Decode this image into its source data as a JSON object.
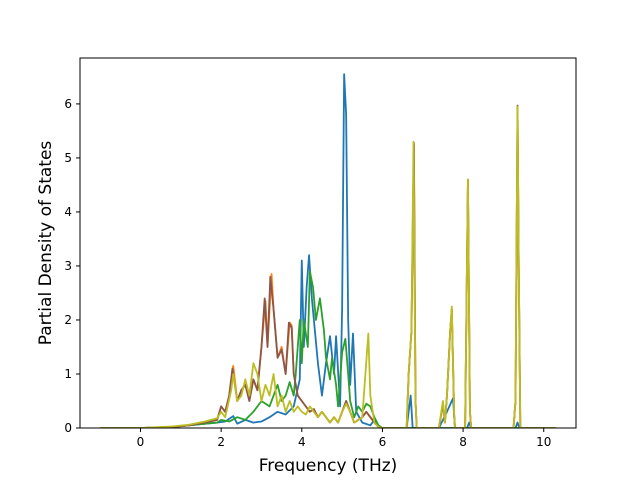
{
  "chart_data": {
    "type": "line",
    "title": "",
    "xlabel": "Frequency (THz)",
    "ylabel": "Partial Density of States",
    "xlim": [
      -1.5,
      10.8
    ],
    "ylim": [
      0,
      6.85
    ],
    "xticks": [
      0,
      2,
      4,
      6,
      8,
      10
    ],
    "yticks": [
      0,
      1,
      2,
      3,
      4,
      5,
      6
    ],
    "grid": false,
    "legend": "none",
    "series": [
      {
        "color": "#1f77b4",
        "points": [
          [
            -1,
            0
          ],
          [
            0,
            0
          ],
          [
            0.8,
            0.02
          ],
          [
            1.2,
            0.05
          ],
          [
            1.6,
            0.08
          ],
          [
            1.9,
            0.1
          ],
          [
            2.1,
            0.12
          ],
          [
            2.3,
            0.22
          ],
          [
            2.4,
            0.08
          ],
          [
            2.6,
            0.15
          ],
          [
            2.8,
            0.1
          ],
          [
            3.0,
            0.12
          ],
          [
            3.2,
            0.2
          ],
          [
            3.4,
            0.3
          ],
          [
            3.6,
            0.25
          ],
          [
            3.8,
            0.4
          ],
          [
            3.95,
            0.9
          ],
          [
            4.0,
            3.1
          ],
          [
            4.05,
            1.5
          ],
          [
            4.12,
            2.6
          ],
          [
            4.18,
            3.2
          ],
          [
            4.25,
            2.4
          ],
          [
            4.4,
            1.2
          ],
          [
            4.5,
            0.6
          ],
          [
            4.6,
            1.2
          ],
          [
            4.7,
            1.7
          ],
          [
            4.8,
            1.0
          ],
          [
            4.85,
            1.7
          ],
          [
            4.95,
            0.4
          ],
          [
            5.0,
            2.2
          ],
          [
            5.05,
            6.55
          ],
          [
            5.1,
            5.8
          ],
          [
            5.15,
            2.0
          ],
          [
            5.2,
            0.8
          ],
          [
            5.27,
            1.75
          ],
          [
            5.35,
            0.3
          ],
          [
            5.5,
            0.1
          ],
          [
            5.7,
            0.05
          ],
          [
            5.8,
            0.15
          ],
          [
            5.9,
            0.02
          ],
          [
            6.0,
            0
          ],
          [
            6.6,
            0
          ],
          [
            6.7,
            0.6
          ],
          [
            6.75,
            0
          ],
          [
            7.4,
            0
          ],
          [
            7.6,
            0.3
          ],
          [
            7.75,
            0.55
          ],
          [
            7.8,
            0
          ],
          [
            8.1,
            0
          ],
          [
            8.15,
            0.1
          ],
          [
            8.2,
            0
          ],
          [
            9.3,
            0
          ],
          [
            9.35,
            0.1
          ],
          [
            9.4,
            0
          ],
          [
            10.3,
            0
          ]
        ]
      },
      {
        "color": "#ff7f0e",
        "points": [
          [
            -1,
            0
          ],
          [
            0,
            0
          ],
          [
            0.8,
            0.02
          ],
          [
            1.2,
            0.05
          ],
          [
            1.6,
            0.1
          ],
          [
            1.9,
            0.15
          ],
          [
            2.0,
            0.4
          ],
          [
            2.1,
            0.3
          ],
          [
            2.2,
            0.6
          ],
          [
            2.3,
            1.15
          ],
          [
            2.4,
            0.5
          ],
          [
            2.5,
            0.7
          ],
          [
            2.6,
            0.8
          ],
          [
            2.7,
            0.5
          ],
          [
            2.8,
            0.9
          ],
          [
            2.9,
            0.7
          ],
          [
            3.0,
            1.5
          ],
          [
            3.1,
            2.35
          ],
          [
            3.15,
            1.5
          ],
          [
            3.25,
            2.85
          ],
          [
            3.3,
            2.2
          ],
          [
            3.4,
            1.3
          ],
          [
            3.5,
            1.5
          ],
          [
            3.6,
            1.0
          ],
          [
            3.7,
            1.95
          ],
          [
            3.75,
            1.9
          ],
          [
            3.8,
            1.0
          ],
          [
            3.9,
            0.6
          ],
          [
            4.0,
            0.5
          ],
          [
            4.1,
            0.4
          ],
          [
            4.2,
            0.3
          ],
          [
            4.3,
            0.35
          ],
          [
            4.4,
            0.2
          ],
          [
            4.5,
            0.3
          ],
          [
            4.6,
            0.2
          ],
          [
            4.7,
            0.1
          ],
          [
            4.8,
            0.2
          ],
          [
            4.9,
            0.1
          ],
          [
            5.0,
            0.3
          ],
          [
            5.1,
            0.5
          ],
          [
            5.2,
            0.3
          ],
          [
            5.3,
            0.1
          ],
          [
            5.5,
            0.2
          ],
          [
            5.6,
            0.3
          ],
          [
            5.7,
            0.2
          ],
          [
            5.8,
            0.1
          ],
          [
            5.9,
            0.02
          ],
          [
            6.0,
            0
          ],
          [
            6.6,
            0
          ],
          [
            6.65,
            1.0
          ],
          [
            6.72,
            1.8
          ],
          [
            6.78,
            5.25
          ],
          [
            6.82,
            0.5
          ],
          [
            6.85,
            0
          ],
          [
            7.4,
            0
          ],
          [
            7.5,
            0.45
          ],
          [
            7.55,
            0.1
          ],
          [
            7.6,
            0.6
          ],
          [
            7.68,
            1.8
          ],
          [
            7.72,
            2.2
          ],
          [
            7.78,
            0.2
          ],
          [
            7.8,
            0
          ],
          [
            8.05,
            0
          ],
          [
            8.12,
            4.6
          ],
          [
            8.17,
            0.3
          ],
          [
            8.2,
            0
          ],
          [
            9.25,
            0
          ],
          [
            9.3,
            0.5
          ],
          [
            9.35,
            5.95
          ],
          [
            9.38,
            3.0
          ],
          [
            9.42,
            0
          ],
          [
            10.3,
            0
          ]
        ]
      },
      {
        "color": "#2ca02c",
        "points": [
          [
            -1,
            0
          ],
          [
            0,
            0
          ],
          [
            0.8,
            0.02
          ],
          [
            1.2,
            0.05
          ],
          [
            1.6,
            0.08
          ],
          [
            1.9,
            0.1
          ],
          [
            2.0,
            0.15
          ],
          [
            2.2,
            0.12
          ],
          [
            2.4,
            0.2
          ],
          [
            2.6,
            0.15
          ],
          [
            2.8,
            0.3
          ],
          [
            3.0,
            0.5
          ],
          [
            3.2,
            0.4
          ],
          [
            3.4,
            0.8
          ],
          [
            3.5,
            0.5
          ],
          [
            3.6,
            0.6
          ],
          [
            3.7,
            0.85
          ],
          [
            3.8,
            0.6
          ],
          [
            3.85,
            1.0
          ],
          [
            3.95,
            2.0
          ],
          [
            4.0,
            1.2
          ],
          [
            4.05,
            2.0
          ],
          [
            4.15,
            1.5
          ],
          [
            4.2,
            2.9
          ],
          [
            4.28,
            2.6
          ],
          [
            4.35,
            2.0
          ],
          [
            4.45,
            2.4
          ],
          [
            4.55,
            1.8
          ],
          [
            4.6,
            1.3
          ],
          [
            4.7,
            0.9
          ],
          [
            4.75,
            1.3
          ],
          [
            4.85,
            0.8
          ],
          [
            4.9,
            0.4
          ],
          [
            5.0,
            1.4
          ],
          [
            5.08,
            1.65
          ],
          [
            5.15,
            1.0
          ],
          [
            5.2,
            0.5
          ],
          [
            5.3,
            0.2
          ],
          [
            5.4,
            0.4
          ],
          [
            5.5,
            0.3
          ],
          [
            5.6,
            0.45
          ],
          [
            5.7,
            0.4
          ],
          [
            5.8,
            0.2
          ],
          [
            5.9,
            0.05
          ],
          [
            6.0,
            0
          ],
          [
            10.3,
            0
          ]
        ]
      },
      {
        "color": "#8c564b",
        "points": [
          [
            -1,
            0
          ],
          [
            0,
            0
          ],
          [
            0.8,
            0.02
          ],
          [
            1.2,
            0.05
          ],
          [
            1.6,
            0.1
          ],
          [
            1.9,
            0.15
          ],
          [
            2.0,
            0.4
          ],
          [
            2.1,
            0.3
          ],
          [
            2.2,
            0.6
          ],
          [
            2.28,
            1.1
          ],
          [
            2.4,
            0.5
          ],
          [
            2.5,
            0.7
          ],
          [
            2.6,
            0.8
          ],
          [
            2.7,
            0.5
          ],
          [
            2.8,
            0.9
          ],
          [
            2.9,
            0.7
          ],
          [
            3.0,
            1.5
          ],
          [
            3.08,
            2.4
          ],
          [
            3.15,
            1.5
          ],
          [
            3.22,
            2.8
          ],
          [
            3.3,
            2.2
          ],
          [
            3.4,
            1.3
          ],
          [
            3.5,
            1.45
          ],
          [
            3.6,
            1.0
          ],
          [
            3.68,
            1.95
          ],
          [
            3.75,
            1.85
          ],
          [
            3.8,
            1.0
          ],
          [
            3.9,
            0.6
          ],
          [
            4.0,
            0.5
          ],
          [
            4.1,
            0.4
          ],
          [
            4.2,
            0.3
          ],
          [
            4.3,
            0.35
          ],
          [
            4.4,
            0.2
          ],
          [
            4.5,
            0.3
          ],
          [
            4.6,
            0.2
          ],
          [
            4.7,
            0.1
          ],
          [
            4.8,
            0.2
          ],
          [
            4.9,
            0.1
          ],
          [
            5.0,
            0.3
          ],
          [
            5.1,
            0.5
          ],
          [
            5.2,
            0.3
          ],
          [
            5.3,
            0.1
          ],
          [
            5.5,
            0.2
          ],
          [
            5.6,
            0.3
          ],
          [
            5.7,
            0.2
          ],
          [
            5.8,
            0.1
          ],
          [
            5.9,
            0.02
          ],
          [
            6.0,
            0
          ],
          [
            6.6,
            0
          ],
          [
            6.65,
            1.0
          ],
          [
            6.72,
            1.8
          ],
          [
            6.78,
            5.28
          ],
          [
            6.82,
            0.5
          ],
          [
            6.85,
            0
          ],
          [
            7.4,
            0
          ],
          [
            7.5,
            0.45
          ],
          [
            7.55,
            0.1
          ],
          [
            7.6,
            0.6
          ],
          [
            7.68,
            1.8
          ],
          [
            7.72,
            2.2
          ],
          [
            7.78,
            0.2
          ],
          [
            7.8,
            0
          ],
          [
            8.05,
            0
          ],
          [
            8.12,
            4.58
          ],
          [
            8.17,
            0.3
          ],
          [
            8.2,
            0
          ],
          [
            9.25,
            0
          ],
          [
            9.3,
            0.5
          ],
          [
            9.35,
            5.97
          ],
          [
            9.38,
            3.0
          ],
          [
            9.42,
            0
          ],
          [
            10.3,
            0
          ]
        ]
      },
      {
        "color": "#bcbd22",
        "points": [
          [
            -1,
            0
          ],
          [
            0,
            0
          ],
          [
            0.8,
            0.03
          ],
          [
            1.2,
            0.06
          ],
          [
            1.6,
            0.12
          ],
          [
            1.9,
            0.18
          ],
          [
            2.0,
            0.3
          ],
          [
            2.1,
            0.2
          ],
          [
            2.25,
            0.7
          ],
          [
            2.3,
            1.0
          ],
          [
            2.4,
            0.5
          ],
          [
            2.5,
            0.6
          ],
          [
            2.6,
            0.9
          ],
          [
            2.7,
            0.6
          ],
          [
            2.8,
            1.2
          ],
          [
            2.9,
            1.0
          ],
          [
            3.0,
            0.5
          ],
          [
            3.1,
            0.8
          ],
          [
            3.2,
            0.6
          ],
          [
            3.3,
            1.0
          ],
          [
            3.4,
            0.4
          ],
          [
            3.5,
            0.6
          ],
          [
            3.6,
            0.3
          ],
          [
            3.7,
            0.5
          ],
          [
            3.8,
            0.3
          ],
          [
            3.9,
            0.4
          ],
          [
            4.0,
            0.3
          ],
          [
            4.1,
            0.25
          ],
          [
            4.2,
            0.4
          ],
          [
            4.3,
            0.3
          ],
          [
            4.4,
            0.2
          ],
          [
            4.5,
            0.3
          ],
          [
            4.6,
            0.2
          ],
          [
            4.7,
            0.1
          ],
          [
            4.8,
            0.2
          ],
          [
            4.9,
            0.1
          ],
          [
            5.0,
            0.3
          ],
          [
            5.1,
            0.45
          ],
          [
            5.2,
            0.3
          ],
          [
            5.3,
            0.1
          ],
          [
            5.5,
            0.2
          ],
          [
            5.65,
            1.75
          ],
          [
            5.7,
            0.6
          ],
          [
            5.8,
            0.1
          ],
          [
            5.9,
            0.02
          ],
          [
            6.0,
            0
          ],
          [
            6.6,
            0
          ],
          [
            6.65,
            1.0
          ],
          [
            6.72,
            1.8
          ],
          [
            6.77,
            5.3
          ],
          [
            6.82,
            0.5
          ],
          [
            6.85,
            0
          ],
          [
            7.4,
            0
          ],
          [
            7.5,
            0.5
          ],
          [
            7.55,
            0.1
          ],
          [
            7.6,
            0.6
          ],
          [
            7.68,
            1.8
          ],
          [
            7.72,
            2.25
          ],
          [
            7.78,
            0.2
          ],
          [
            7.8,
            0
          ],
          [
            8.05,
            0
          ],
          [
            8.12,
            4.6
          ],
          [
            8.17,
            0.3
          ],
          [
            8.2,
            0
          ],
          [
            9.25,
            0
          ],
          [
            9.3,
            0.5
          ],
          [
            9.35,
            5.95
          ],
          [
            9.38,
            3.0
          ],
          [
            9.42,
            0
          ],
          [
            10.3,
            0
          ]
        ]
      }
    ]
  }
}
